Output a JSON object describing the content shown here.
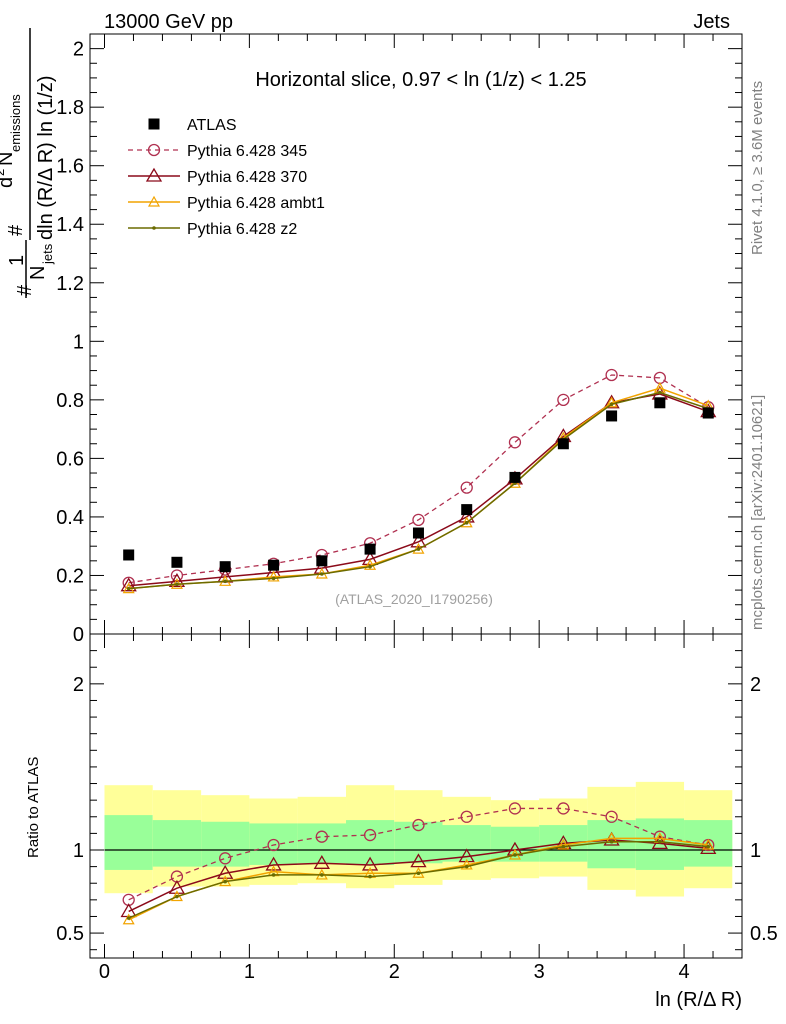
{
  "header": {
    "left": "13000 GeV pp",
    "right": "Jets"
  },
  "side_labels": {
    "rivet": "Rivet 4.1.0, ≥ 3.6M events",
    "mcplots": "mcplots.cern.ch [arXiv:2401.10621]"
  },
  "colors": {
    "data": "#000000",
    "p345": "#b03050",
    "p370": "#8b0a1a",
    "ambt1": "#f2a400",
    "z2": "#6b6b00",
    "band_outer": "#ffff99",
    "band_inner": "#99ff99"
  },
  "chart_data": [
    {
      "type": "scatter",
      "panel": "main",
      "title": "Horizontal slice, 0.97 < ln (1/z) < 1.25",
      "watermark": "(ATLAS_2020_I1790256)",
      "ylabel_parts": {
        "inv": "1",
        "njets": "N",
        "jets_sub": "jets",
        "num_d": "d",
        "num_exp": "2",
        "num_n": "N",
        "num_sub": "emissions",
        "den": "dln (R/Δ R) ln (1/z)",
        "hash": "#"
      },
      "ylim": [
        0,
        2.05
      ],
      "xlim": [
        -0.1,
        4.4
      ],
      "yticks": [
        0,
        0.2,
        0.4,
        0.6,
        0.8,
        1,
        1.2,
        1.4,
        1.6,
        1.8,
        2
      ],
      "ytick_labels": [
        "0",
        "0.2",
        "0.4",
        "0.6",
        "0.8",
        "1",
        "1.2",
        "1.4",
        "1.6",
        "1.8",
        "2"
      ],
      "x": [
        0.167,
        0.5,
        0.833,
        1.167,
        1.5,
        1.833,
        2.167,
        2.5,
        2.833,
        3.167,
        3.5,
        3.833,
        4.167
      ],
      "series": [
        {
          "name": "ATLAS",
          "key": "data",
          "values": [
            0.27,
            0.245,
            0.23,
            0.235,
            0.25,
            0.29,
            0.345,
            0.425,
            0.535,
            0.65,
            0.745,
            0.79,
            0.755
          ]
        },
        {
          "name": "Pythia 6.428 345",
          "key": "p345",
          "values": [
            0.175,
            0.2,
            0.22,
            0.24,
            0.27,
            0.31,
            0.39,
            0.5,
            0.655,
            0.8,
            0.885,
            0.875,
            0.775
          ]
        },
        {
          "name": "Pythia 6.428 370",
          "key": "p370",
          "values": [
            0.165,
            0.18,
            0.195,
            0.21,
            0.225,
            0.255,
            0.315,
            0.4,
            0.53,
            0.675,
            0.79,
            0.82,
            0.76
          ]
        },
        {
          "name": "Pythia 6.428 ambt1",
          "key": "ambt1",
          "values": [
            0.155,
            0.17,
            0.18,
            0.195,
            0.205,
            0.235,
            0.29,
            0.38,
            0.515,
            0.67,
            0.79,
            0.84,
            0.78
          ]
        },
        {
          "name": "Pythia 6.428 z2",
          "key": "z2",
          "values": [
            0.155,
            0.17,
            0.18,
            0.19,
            0.205,
            0.23,
            0.29,
            0.38,
            0.515,
            0.665,
            0.785,
            0.825,
            0.77
          ]
        }
      ]
    },
    {
      "type": "line",
      "panel": "ratio",
      "ylabel": "Ratio to ATLAS",
      "xlabel": "ln (R/Δ R)",
      "ylim": [
        0.35,
        2.3
      ],
      "xlim": [
        -0.1,
        4.4
      ],
      "yticks": [
        0.5,
        1,
        2
      ],
      "ytick_labels": [
        "0.5",
        "1",
        "2"
      ],
      "xticks": [
        0,
        1,
        2,
        3,
        4
      ],
      "xtick_labels": [
        "0",
        "1",
        "2",
        "3",
        "4"
      ],
      "bin_edges": [
        0,
        0.333,
        0.667,
        1.0,
        1.333,
        1.667,
        2.0,
        2.333,
        2.667,
        3.0,
        3.333,
        3.667,
        4.0,
        4.333
      ],
      "band_outer_lo": [
        0.74,
        0.78,
        0.78,
        0.79,
        0.8,
        0.77,
        0.79,
        0.82,
        0.83,
        0.84,
        0.76,
        0.72,
        0.77
      ],
      "band_outer_hi": [
        1.39,
        1.36,
        1.33,
        1.31,
        1.32,
        1.39,
        1.36,
        1.32,
        1.3,
        1.31,
        1.38,
        1.41,
        1.36
      ],
      "band_inner_lo": [
        0.88,
        0.9,
        0.9,
        0.91,
        0.92,
        0.91,
        0.92,
        0.93,
        0.93,
        0.93,
        0.89,
        0.88,
        0.9
      ],
      "band_inner_hi": [
        1.21,
        1.18,
        1.17,
        1.16,
        1.16,
        1.18,
        1.17,
        1.15,
        1.14,
        1.15,
        1.18,
        1.19,
        1.18
      ],
      "x": [
        0.167,
        0.5,
        0.833,
        1.167,
        1.5,
        1.833,
        2.167,
        2.5,
        2.833,
        3.167,
        3.5,
        3.833,
        4.167
      ],
      "series": [
        {
          "name": "Pythia 6.428 345",
          "key": "p345",
          "values": [
            0.7,
            0.84,
            0.95,
            1.03,
            1.08,
            1.09,
            1.15,
            1.2,
            1.25,
            1.25,
            1.2,
            1.08,
            1.03
          ]
        },
        {
          "name": "Pythia 6.428 370",
          "key": "p370",
          "values": [
            0.63,
            0.77,
            0.86,
            0.91,
            0.92,
            0.91,
            0.93,
            0.96,
            1.0,
            1.04,
            1.06,
            1.04,
            1.01
          ]
        },
        {
          "name": "Pythia 6.428 ambt1",
          "key": "ambt1",
          "values": [
            0.58,
            0.72,
            0.81,
            0.87,
            0.85,
            0.86,
            0.86,
            0.91,
            0.97,
            1.03,
            1.07,
            1.07,
            1.03
          ]
        },
        {
          "name": "Pythia 6.428 z2",
          "key": "z2",
          "values": [
            0.59,
            0.72,
            0.81,
            0.85,
            0.85,
            0.84,
            0.86,
            0.9,
            0.97,
            1.02,
            1.05,
            1.05,
            1.02
          ]
        }
      ]
    }
  ]
}
